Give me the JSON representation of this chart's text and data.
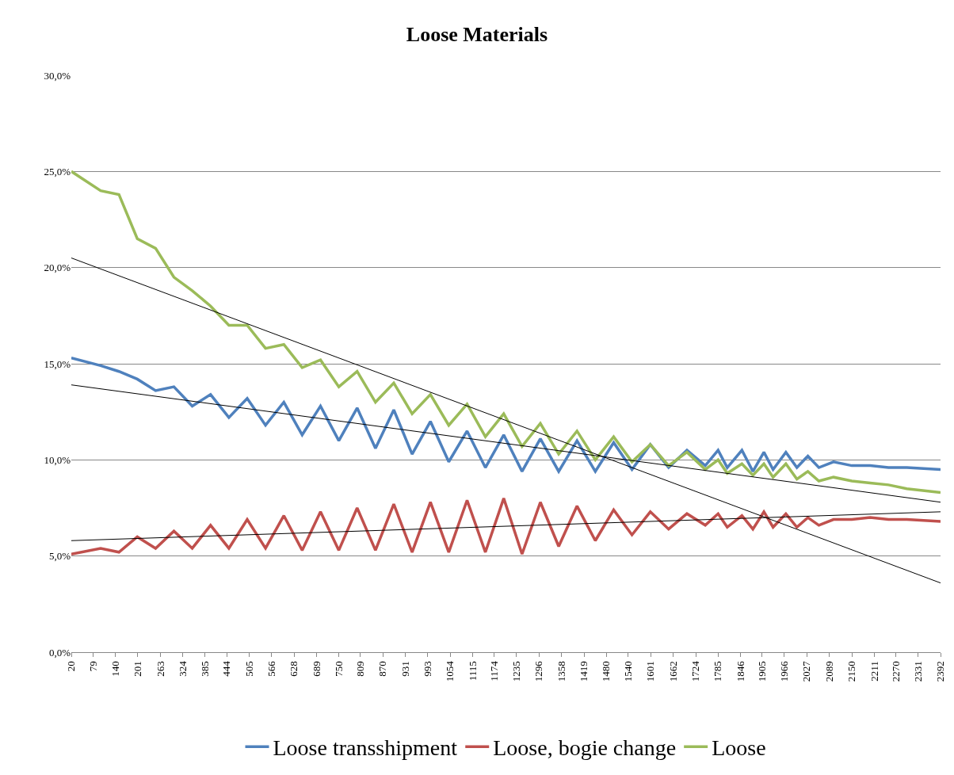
{
  "chart_data": {
    "type": "line",
    "title": "Loose Materials",
    "x": [
      20,
      100,
      150,
      200,
      250,
      300,
      350,
      400,
      450,
      500,
      550,
      600,
      650,
      700,
      750,
      800,
      850,
      900,
      950,
      1000,
      1050,
      1100,
      1150,
      1200,
      1250,
      1300,
      1350,
      1400,
      1450,
      1500,
      1550,
      1600,
      1650,
      1700,
      1750,
      1785,
      1810,
      1850,
      1880,
      1910,
      1935,
      1970,
      2000,
      2030,
      2060,
      2100,
      2150,
      2200,
      2250,
      2300,
      2392
    ],
    "series": [
      {
        "name": "Loose transshipment",
        "color": "#4f81bd",
        "values": [
          15.3,
          14.9,
          14.6,
          14.2,
          13.6,
          13.8,
          12.8,
          13.4,
          12.2,
          13.2,
          11.8,
          13.0,
          11.3,
          12.8,
          11.0,
          12.7,
          10.6,
          12.6,
          10.3,
          12.0,
          9.9,
          11.5,
          9.6,
          11.3,
          9.4,
          11.1,
          9.4,
          11.0,
          9.4,
          10.9,
          9.5,
          10.8,
          9.6,
          10.5,
          9.7,
          10.5,
          9.6,
          10.5,
          9.4,
          10.4,
          9.5,
          10.4,
          9.6,
          10.2,
          9.6,
          9.9,
          9.7,
          9.7,
          9.6,
          9.6,
          9.5
        ]
      },
      {
        "name": "Loose, bogie change",
        "color": "#c0504d",
        "values": [
          5.1,
          5.4,
          5.2,
          6.0,
          5.4,
          6.3,
          5.4,
          6.6,
          5.4,
          6.9,
          5.4,
          7.1,
          5.3,
          7.3,
          5.3,
          7.5,
          5.3,
          7.7,
          5.2,
          7.8,
          5.2,
          7.9,
          5.2,
          8.0,
          5.1,
          7.8,
          5.5,
          7.6,
          5.8,
          7.4,
          6.1,
          7.3,
          6.4,
          7.2,
          6.6,
          7.2,
          6.5,
          7.1,
          6.4,
          7.3,
          6.5,
          7.2,
          6.5,
          7.0,
          6.6,
          6.9,
          6.9,
          7.0,
          6.9,
          6.9,
          6.8
        ]
      },
      {
        "name": "Loose",
        "color": "#9bbb59",
        "values": [
          25.0,
          24.0,
          23.8,
          21.5,
          21.0,
          19.5,
          18.8,
          18.0,
          17.0,
          17.0,
          15.8,
          16.0,
          14.8,
          15.2,
          13.8,
          14.6,
          13.0,
          14.0,
          12.4,
          13.4,
          11.8,
          12.9,
          11.2,
          12.4,
          10.7,
          11.9,
          10.3,
          11.5,
          10.0,
          11.2,
          9.9,
          10.8,
          9.7,
          10.4,
          9.5,
          10.0,
          9.3,
          9.8,
          9.2,
          9.8,
          9.1,
          9.8,
          9.0,
          9.4,
          8.9,
          9.1,
          8.9,
          8.8,
          8.7,
          8.5,
          8.3
        ]
      },
      {
        "type": "line",
        "color": "#000000",
        "values": [
          13.9,
          null,
          null,
          null,
          null,
          null,
          null,
          null,
          null,
          null,
          null,
          null,
          null,
          null,
          null,
          null,
          null,
          null,
          null,
          null,
          null,
          null,
          null,
          null,
          null,
          null,
          null,
          null,
          null,
          null,
          null,
          null,
          null,
          null,
          null,
          null,
          null,
          null,
          null,
          null,
          null,
          null,
          null,
          null,
          null,
          null,
          null,
          null,
          null,
          null,
          7.8
        ]
      },
      {
        "type": "line",
        "color": "#000000",
        "values": [
          5.8,
          null,
          null,
          null,
          null,
          null,
          null,
          null,
          null,
          null,
          null,
          null,
          null,
          null,
          null,
          null,
          null,
          null,
          null,
          null,
          null,
          null,
          null,
          null,
          null,
          null,
          null,
          null,
          null,
          null,
          null,
          null,
          null,
          null,
          null,
          null,
          null,
          null,
          null,
          null,
          null,
          null,
          null,
          null,
          null,
          null,
          null,
          null,
          null,
          null,
          7.3
        ]
      },
      {
        "type": "line",
        "color": "#000000",
        "values": [
          20.5,
          null,
          null,
          null,
          null,
          null,
          null,
          null,
          null,
          null,
          null,
          null,
          null,
          null,
          null,
          null,
          null,
          null,
          null,
          null,
          null,
          null,
          null,
          null,
          null,
          null,
          null,
          null,
          null,
          null,
          null,
          null,
          null,
          null,
          null,
          null,
          null,
          null,
          null,
          null,
          null,
          null,
          null,
          null,
          null,
          null,
          null,
          null,
          null,
          null,
          3.6
        ]
      }
    ],
    "xlim": [
      20,
      2392
    ],
    "xticks": [
      20,
      79,
      140,
      201,
      263,
      324,
      385,
      444,
      505,
      566,
      628,
      689,
      750,
      809,
      870,
      931,
      993,
      1054,
      1115,
      1174,
      1235,
      1296,
      1358,
      1419,
      1480,
      1540,
      1601,
      1662,
      1724,
      1785,
      1846,
      1905,
      1966,
      2027,
      2089,
      2150,
      2211,
      2270,
      2331,
      2392
    ],
    "ylim": [
      0,
      30
    ],
    "yticks": [
      {
        "value": 0,
        "label": "0,0%"
      },
      {
        "value": 5,
        "label": "5,0%"
      },
      {
        "value": 10,
        "label": "10,0%"
      },
      {
        "value": 15,
        "label": "15,0%"
      },
      {
        "value": 20,
        "label": "20,0%"
      },
      {
        "value": 25,
        "label": "25,0%"
      },
      {
        "value": 30,
        "label": "30,0%"
      }
    ],
    "grid": "y",
    "legend": "bottom"
  }
}
